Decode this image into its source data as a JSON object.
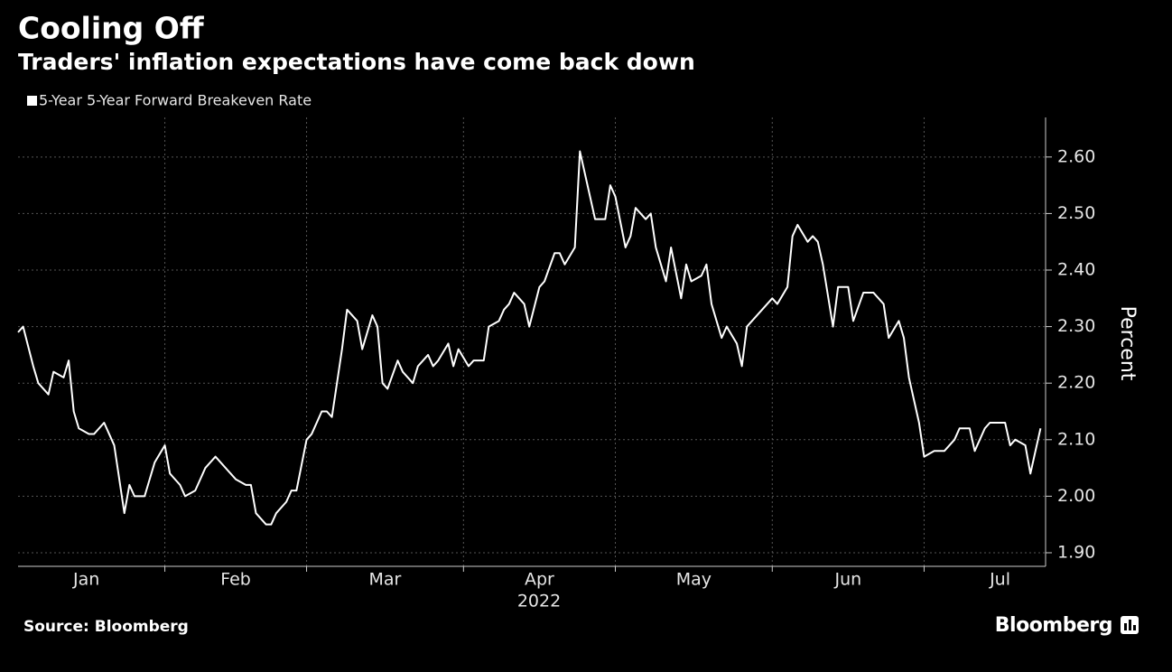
{
  "chart_data": {
    "type": "line",
    "title": "Cooling Off",
    "subtitle": "Traders' inflation expectations have come back down",
    "y_axis_label": "Percent",
    "x_axis_label": "2022",
    "source": "Source: Bloomberg",
    "brand": "Bloomberg",
    "months": [
      "Jan",
      "Feb",
      "Mar",
      "Apr",
      "May",
      "Jun",
      "Jul"
    ],
    "month_starts": [
      1,
      32,
      60,
      91,
      121,
      152,
      182
    ],
    "xlim": [
      3,
      206
    ],
    "ylim": [
      1.876,
      2.67
    ],
    "yticks": [
      {
        "value": 1.9,
        "label": "1.90"
      },
      {
        "value": 2.0,
        "label": "2.00"
      },
      {
        "value": 2.1,
        "label": "2.10"
      },
      {
        "value": 2.2,
        "label": "2.20"
      },
      {
        "value": 2.3,
        "label": "2.30"
      },
      {
        "value": 2.4,
        "label": "2.40"
      },
      {
        "value": 2.5,
        "label": "2.50"
      },
      {
        "value": 2.6,
        "label": "2.60"
      }
    ],
    "grid": true,
    "series": [
      {
        "name": "5-Year 5-Year Forward Breakeven Rate",
        "color": "#ffffff",
        "x": [
          3,
          4,
          6,
          7,
          9,
          10,
          12,
          13,
          14,
          15,
          17,
          18,
          20,
          21,
          22,
          24,
          25,
          26,
          28,
          29,
          30,
          32,
          33,
          35,
          36,
          38,
          39,
          40,
          42,
          43,
          45,
          46,
          48,
          49,
          50,
          52,
          53,
          54,
          56,
          57,
          58,
          60,
          61,
          63,
          64,
          65,
          67,
          68,
          70,
          71,
          73,
          74,
          75,
          76,
          78,
          79,
          81,
          82,
          84,
          85,
          86,
          88,
          89,
          90,
          92,
          93,
          95,
          96,
          98,
          99,
          100,
          101,
          103,
          104,
          106,
          107,
          109,
          110,
          111,
          113,
          114,
          116,
          117,
          119,
          120,
          121,
          123,
          124,
          125,
          127,
          128,
          129,
          131,
          132,
          134,
          135,
          136,
          138,
          139,
          140,
          142,
          143,
          145,
          146,
          147,
          149,
          150,
          152,
          153,
          155,
          156,
          157,
          159,
          160,
          161,
          162,
          164,
          165,
          167,
          168,
          170,
          171,
          172,
          174,
          175,
          177,
          178,
          179,
          181,
          182,
          184,
          185,
          186,
          188,
          189,
          191,
          192,
          194,
          195,
          196,
          198,
          199,
          200,
          202,
          203,
          205
        ],
        "values": [
          2.29,
          2.3,
          2.23,
          2.2,
          2.18,
          2.22,
          2.21,
          2.24,
          2.15,
          2.12,
          2.11,
          2.11,
          2.13,
          2.11,
          2.09,
          1.97,
          2.02,
          2.0,
          2.0,
          2.03,
          2.06,
          2.09,
          2.04,
          2.02,
          2.0,
          2.01,
          2.03,
          2.05,
          2.07,
          2.06,
          2.04,
          2.03,
          2.02,
          2.02,
          1.97,
          1.95,
          1.95,
          1.97,
          1.99,
          2.01,
          2.01,
          2.1,
          2.11,
          2.15,
          2.15,
          2.14,
          2.26,
          2.33,
          2.31,
          2.26,
          2.32,
          2.3,
          2.2,
          2.19,
          2.24,
          2.22,
          2.2,
          2.23,
          2.25,
          2.23,
          2.24,
          2.27,
          2.23,
          2.26,
          2.23,
          2.24,
          2.24,
          2.3,
          2.31,
          2.33,
          2.34,
          2.36,
          2.34,
          2.3,
          2.37,
          2.38,
          2.43,
          2.43,
          2.41,
          2.44,
          2.61,
          2.53,
          2.49,
          2.49,
          2.55,
          2.53,
          2.44,
          2.46,
          2.51,
          2.49,
          2.5,
          2.44,
          2.38,
          2.44,
          2.35,
          2.41,
          2.38,
          2.39,
          2.41,
          2.34,
          2.28,
          2.3,
          2.27,
          2.23,
          2.3,
          2.32,
          2.33,
          2.35,
          2.34,
          2.37,
          2.46,
          2.48,
          2.45,
          2.46,
          2.45,
          2.41,
          2.3,
          2.37,
          2.37,
          2.31,
          2.36,
          2.36,
          2.36,
          2.34,
          2.28,
          2.31,
          2.28,
          2.21,
          2.13,
          2.07,
          2.08,
          2.08,
          2.08,
          2.1,
          2.12,
          2.12,
          2.08,
          2.12,
          2.13,
          2.13,
          2.13,
          2.09,
          2.1,
          2.09,
          2.04,
          2.12
        ]
      }
    ]
  }
}
